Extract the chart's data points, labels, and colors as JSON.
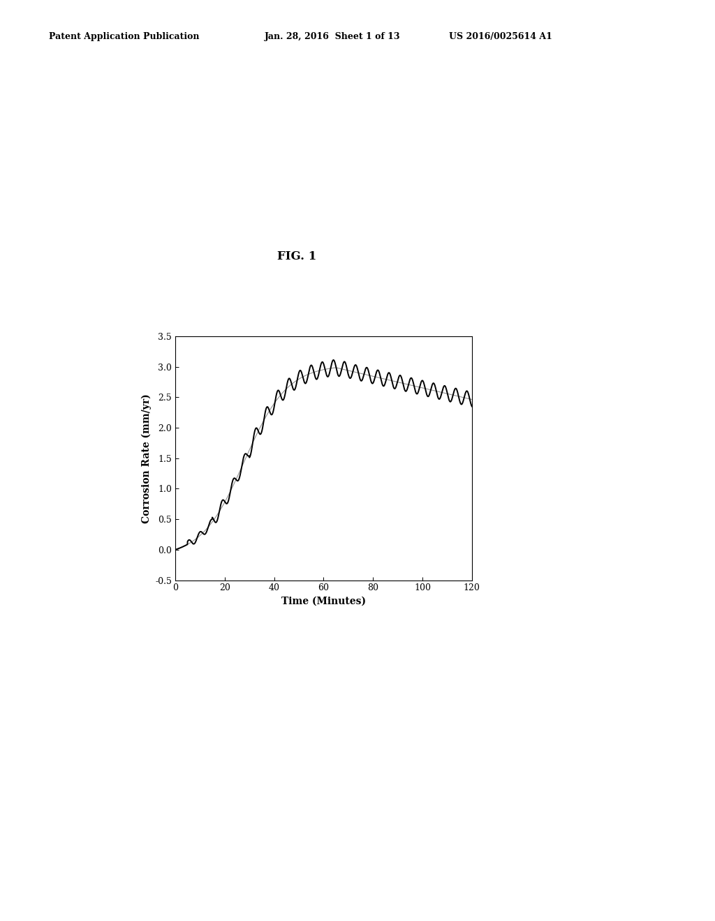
{
  "title": "FIG. 1",
  "xlabel": "Time (Minutes)",
  "ylabel": "Corrosion Rate (mm/yr)",
  "xlim": [
    0,
    120
  ],
  "ylim": [
    -0.5,
    3.5
  ],
  "xticks": [
    0,
    20,
    40,
    60,
    80,
    100,
    120
  ],
  "yticks": [
    -0.5,
    0.0,
    0.5,
    1.0,
    1.5,
    2.0,
    2.5,
    3.0,
    3.5
  ],
  "header_left": "Patent Application Publication",
  "header_mid": "Jan. 28, 2016  Sheet 1 of 13",
  "header_right": "US 2016/0025614 A1",
  "bg_color": "#ffffff",
  "line_color_bold": "#000000",
  "line_color_smooth": "#888888",
  "fig_label": "FIG. 1"
}
